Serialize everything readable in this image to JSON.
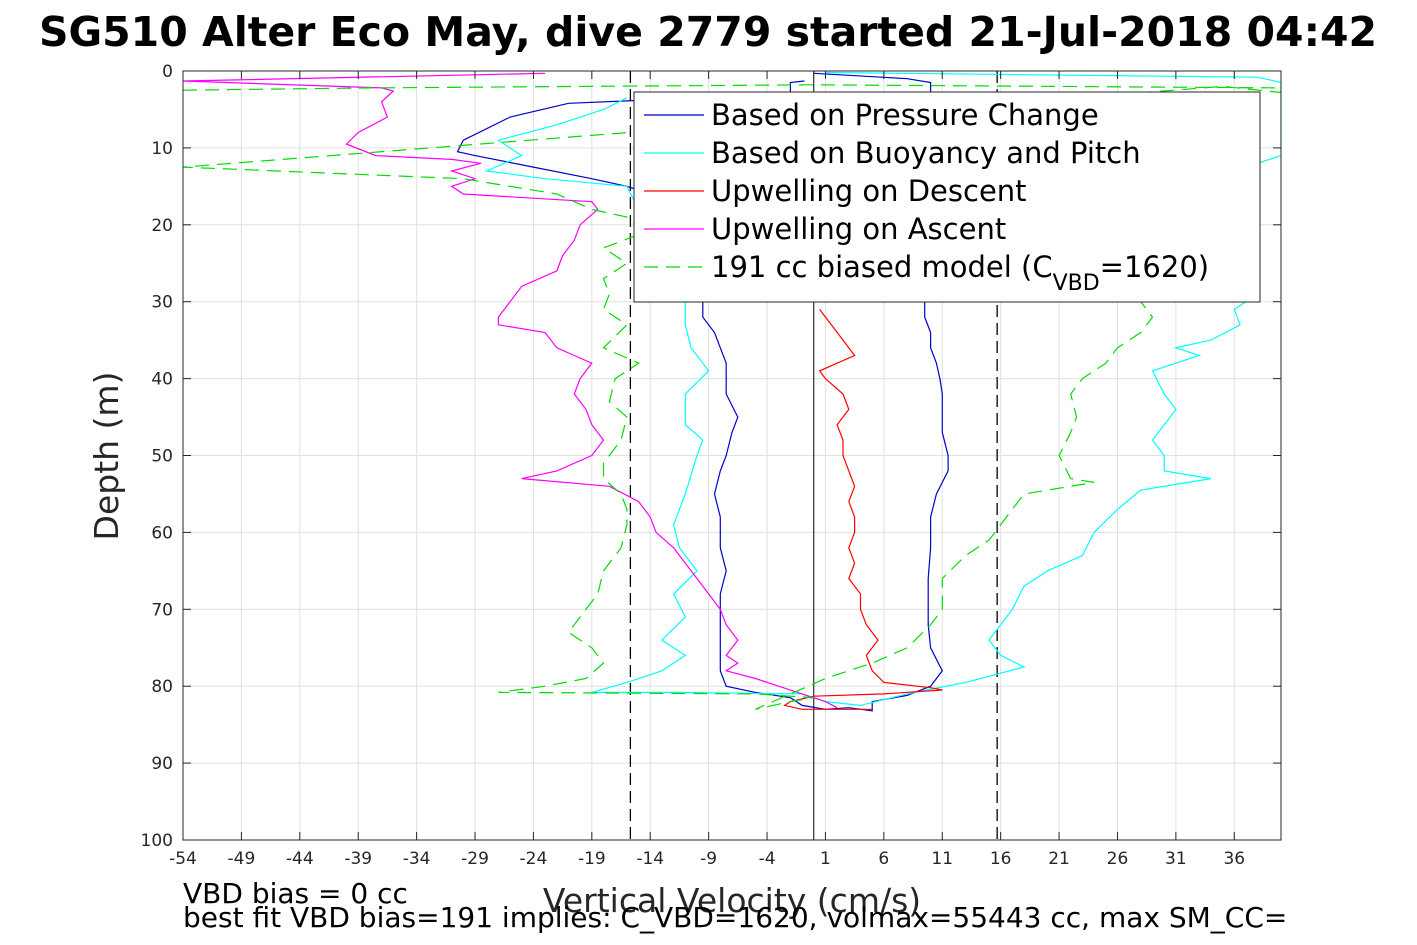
{
  "chart_data": {
    "type": "line",
    "title": "SG510 Alter Eco May, dive 2779 started 21-Jul-2018 04:42",
    "xlabel": "Vertical Velocity (cm/s)",
    "ylabel": "Depth (m)",
    "xlim": [
      -54,
      40
    ],
    "ylim": [
      0,
      100
    ],
    "y_reversed": true,
    "grid": true,
    "legend_position": "top-right",
    "x_ticks": [
      -54,
      -49,
      -44,
      -39,
      -34,
      -29,
      -24,
      -19,
      -14,
      -9,
      -4,
      1,
      6,
      11,
      16,
      21,
      26,
      31,
      36
    ],
    "y_ticks": [
      0,
      10,
      20,
      30,
      40,
      50,
      60,
      70,
      80,
      90,
      100
    ],
    "reference_lines": {
      "zero_velocity": 0,
      "dashed_limits": [
        -15.7,
        15.7
      ]
    },
    "series": [
      {
        "name": "Based on Pressure Change",
        "color": "#0000cc",
        "style": "solid",
        "points": [
          [
            -0.8,
            1.3
          ],
          [
            -2,
            1.5
          ],
          [
            -2,
            3
          ],
          [
            -21,
            4.2
          ],
          [
            -26,
            6
          ],
          [
            -30,
            9
          ],
          [
            -30.5,
            10.5
          ],
          [
            -29,
            11
          ],
          [
            -24,
            12.5
          ],
          [
            -19,
            14
          ],
          [
            -16,
            15
          ],
          [
            -14,
            16
          ],
          [
            -9.5,
            30
          ],
          [
            -9.5,
            32
          ],
          [
            -8.5,
            34
          ],
          [
            -8,
            36
          ],
          [
            -7.5,
            38
          ],
          [
            -7.5,
            40
          ],
          [
            -7.5,
            42
          ],
          [
            -6.5,
            45
          ],
          [
            -7,
            47
          ],
          [
            -7.5,
            50
          ],
          [
            -8,
            52
          ],
          [
            -8.5,
            55
          ],
          [
            -8,
            58
          ],
          [
            -8,
            62
          ],
          [
            -7.5,
            65
          ],
          [
            -8,
            68
          ],
          [
            -8,
            70
          ],
          [
            -8,
            73
          ],
          [
            -8,
            75
          ],
          [
            -8,
            78
          ],
          [
            -7.5,
            80
          ],
          [
            -5,
            80.8
          ],
          [
            -2,
            81.5
          ],
          [
            -1,
            82.5
          ],
          [
            1,
            83
          ],
          [
            3,
            82.8
          ],
          [
            5,
            83.2
          ],
          [
            5,
            82
          ],
          [
            8,
            81.2
          ],
          [
            10,
            80
          ],
          [
            11,
            78
          ],
          [
            10,
            75
          ],
          [
            9.8,
            72
          ],
          [
            9.8,
            70
          ],
          [
            9.8,
            66
          ],
          [
            10,
            62
          ],
          [
            10,
            58
          ],
          [
            10.5,
            55
          ],
          [
            11.5,
            52
          ],
          [
            11.5,
            50
          ],
          [
            11,
            47
          ],
          [
            11,
            45
          ],
          [
            11,
            42
          ],
          [
            10.8,
            40
          ],
          [
            10.5,
            38
          ],
          [
            10,
            36
          ],
          [
            10,
            34
          ],
          [
            9.5,
            32
          ],
          [
            9.5,
            30
          ],
          [
            9.5,
            15
          ],
          [
            11.5,
            12
          ],
          [
            11,
            8
          ],
          [
            10,
            5
          ],
          [
            10,
            1.5
          ],
          [
            8,
            1
          ],
          [
            0,
            0.3
          ]
        ]
      },
      {
        "name": "Based on Buoyancy and Pitch",
        "color": "#00ffff",
        "style": "solid",
        "points": [
          [
            -16,
            3.5
          ],
          [
            -18,
            5
          ],
          [
            -22,
            7
          ],
          [
            -27,
            9
          ],
          [
            -25,
            11
          ],
          [
            -28,
            13
          ],
          [
            -23,
            14
          ],
          [
            -16,
            15
          ],
          [
            -11,
            30
          ],
          [
            -11,
            33
          ],
          [
            -10.5,
            36
          ],
          [
            -9,
            39
          ],
          [
            -11,
            42
          ],
          [
            -11,
            46
          ],
          [
            -9.5,
            48
          ],
          [
            -10,
            50
          ],
          [
            -11,
            55
          ],
          [
            -12,
            59
          ],
          [
            -11.5,
            62
          ],
          [
            -10,
            65
          ],
          [
            -12,
            68
          ],
          [
            -11,
            71
          ],
          [
            -13,
            74
          ],
          [
            -11,
            76
          ],
          [
            -13,
            78
          ],
          [
            -16,
            79.5
          ],
          [
            -19,
            80.8
          ],
          [
            -12,
            80.8
          ],
          [
            -1,
            81
          ],
          [
            1,
            82
          ],
          [
            4,
            82.5
          ],
          [
            8,
            81
          ],
          [
            13,
            79.5
          ],
          [
            18,
            77.5
          ],
          [
            16,
            76
          ],
          [
            15,
            74
          ],
          [
            16,
            72
          ],
          [
            17,
            70
          ],
          [
            18,
            67
          ],
          [
            20,
            65
          ],
          [
            23,
            63
          ],
          [
            24,
            60
          ],
          [
            26,
            57
          ],
          [
            28,
            54.5
          ],
          [
            34,
            53
          ],
          [
            30,
            52
          ],
          [
            30,
            50
          ],
          [
            29,
            48
          ],
          [
            30,
            46
          ],
          [
            31,
            44
          ],
          [
            30,
            42
          ],
          [
            29,
            39
          ],
          [
            31,
            38
          ],
          [
            33,
            37
          ],
          [
            31,
            36
          ],
          [
            34,
            35
          ],
          [
            36.5,
            33
          ],
          [
            36,
            31
          ],
          [
            38,
            29
          ],
          [
            38,
            16
          ],
          [
            37,
            14
          ],
          [
            38,
            12
          ],
          [
            40,
            11
          ],
          [
            40,
            1.5
          ],
          [
            38,
            0.8
          ],
          [
            1,
            0.2
          ]
        ]
      },
      {
        "name": "Upwelling on Descent",
        "color": "#ff0000",
        "style": "solid",
        "points": [
          [
            0.5,
            31
          ],
          [
            1.5,
            33
          ],
          [
            2.5,
            35
          ],
          [
            3.5,
            37
          ],
          [
            2,
            38
          ],
          [
            0.5,
            39
          ],
          [
            1,
            40
          ],
          [
            2.5,
            42
          ],
          [
            3,
            44
          ],
          [
            2,
            46
          ],
          [
            2.5,
            48
          ],
          [
            2.5,
            50
          ],
          [
            3,
            52
          ],
          [
            3.5,
            54
          ],
          [
            3,
            56
          ],
          [
            3.5,
            58
          ],
          [
            3.5,
            60
          ],
          [
            3,
            62
          ],
          [
            3.5,
            64
          ],
          [
            3,
            66
          ],
          [
            4,
            68
          ],
          [
            4,
            70
          ],
          [
            4.5,
            72
          ],
          [
            5.5,
            74
          ],
          [
            4.5,
            76
          ],
          [
            5,
            78
          ],
          [
            6,
            79.5
          ],
          [
            10,
            80.2
          ],
          [
            11,
            80.5
          ],
          [
            6,
            81
          ],
          [
            0,
            81.3
          ],
          [
            -2,
            82
          ],
          [
            -2.5,
            82.5
          ],
          [
            -1,
            83
          ],
          [
            1,
            83
          ],
          [
            3,
            83
          ],
          [
            5,
            83
          ]
        ]
      },
      {
        "name": "Upwelling on Ascent",
        "color": "#ff00ff",
        "style": "solid",
        "points": [
          [
            -23,
            0.3
          ],
          [
            -54,
            1.3
          ],
          [
            -37,
            2.2
          ],
          [
            -36,
            2.6
          ],
          [
            -37,
            4
          ],
          [
            -36.5,
            6
          ],
          [
            -39,
            8
          ],
          [
            -40,
            9.5
          ],
          [
            -37.5,
            11
          ],
          [
            -31,
            11.5
          ],
          [
            -28.5,
            12
          ],
          [
            -31,
            13
          ],
          [
            -29,
            14
          ],
          [
            -31,
            15
          ],
          [
            -30,
            16
          ],
          [
            -19,
            17
          ],
          [
            -18.5,
            18
          ],
          [
            -20,
            20
          ],
          [
            -20.5,
            22
          ],
          [
            -21.5,
            24
          ],
          [
            -22,
            26
          ],
          [
            -25,
            28
          ],
          [
            -26,
            30
          ],
          [
            -27,
            32
          ],
          [
            -27,
            33
          ],
          [
            -23,
            34
          ],
          [
            -22,
            36
          ],
          [
            -20.5,
            37
          ],
          [
            -19,
            38
          ],
          [
            -20,
            40
          ],
          [
            -20.5,
            42
          ],
          [
            -19.5,
            44
          ],
          [
            -19,
            46
          ],
          [
            -18,
            48
          ],
          [
            -19,
            50
          ],
          [
            -22,
            52
          ],
          [
            -25,
            53
          ],
          [
            -17.5,
            54
          ],
          [
            -15,
            56
          ],
          [
            -14,
            58
          ],
          [
            -13.5,
            60
          ],
          [
            -12,
            62
          ],
          [
            -11,
            64
          ],
          [
            -10,
            66
          ],
          [
            -9,
            68
          ],
          [
            -8,
            70
          ],
          [
            -7.5,
            72
          ],
          [
            -6.5,
            74
          ],
          [
            -7.5,
            76
          ],
          [
            -6.5,
            77
          ],
          [
            -7.5,
            78
          ],
          [
            -5,
            79
          ],
          [
            -3,
            80
          ],
          [
            -1,
            81
          ],
          [
            1,
            82
          ],
          [
            2,
            82.8
          ]
        ]
      },
      {
        "name": "191 cc biased model (C_VBD=1620)",
        "color": "#00dd00",
        "style": "dashed",
        "points": [
          [
            -54,
            2.5
          ],
          [
            -38,
            2.2
          ],
          [
            0,
            1.8
          ],
          [
            40,
            2.2
          ],
          [
            40,
            2.8
          ],
          [
            35,
            2
          ],
          [
            -54,
            12.5
          ],
          [
            -30,
            14
          ],
          [
            -22,
            16
          ],
          [
            -19,
            18
          ],
          [
            -16,
            19
          ],
          [
            -14.5,
            21
          ],
          [
            -18,
            23
          ],
          [
            -16,
            25
          ],
          [
            -18,
            27
          ],
          [
            -17.5,
            29
          ],
          [
            -18,
            31
          ],
          [
            -16,
            33
          ],
          [
            -18,
            36
          ],
          [
            -15,
            38
          ],
          [
            -17,
            40
          ],
          [
            -17.5,
            43
          ],
          [
            -16,
            45
          ],
          [
            -16.5,
            48
          ],
          [
            -18,
            51
          ],
          [
            -18,
            53
          ],
          [
            -16.5,
            55
          ],
          [
            -16,
            57
          ],
          [
            -16,
            59
          ],
          [
            -16.5,
            62
          ],
          [
            -18,
            65
          ],
          [
            -18.5,
            68
          ],
          [
            -20,
            71
          ],
          [
            -21,
            73
          ],
          [
            -19,
            75
          ],
          [
            -18,
            77
          ],
          [
            -19.5,
            79
          ],
          [
            -23,
            80
          ],
          [
            -27,
            80.8
          ],
          [
            -5,
            81
          ],
          [
            0,
            81.5
          ],
          [
            -2,
            82
          ],
          [
            -5,
            83
          ],
          [
            1,
            79
          ],
          [
            5,
            77
          ],
          [
            8,
            75
          ],
          [
            10,
            72
          ],
          [
            11,
            70
          ],
          [
            11,
            66
          ],
          [
            13,
            63
          ],
          [
            15,
            61
          ],
          [
            16,
            59
          ],
          [
            17,
            57
          ],
          [
            18,
            55
          ],
          [
            24,
            53.5
          ],
          [
            22,
            53
          ],
          [
            21,
            50
          ],
          [
            22,
            47
          ],
          [
            22.5,
            45
          ],
          [
            22,
            42
          ],
          [
            23,
            40
          ],
          [
            25,
            38
          ],
          [
            26,
            36
          ],
          [
            28,
            34
          ],
          [
            29,
            32
          ],
          [
            28,
            30
          ]
        ]
      }
    ],
    "legend_label_parts": {
      "prefix": "191 cc biased model (C",
      "subscript": "VBD",
      "suffix": "=1620)"
    },
    "annotations": [
      "VBD bias = 0 cc",
      "best fit VBD bias=191 implies: C_VBD=1620, volmax=55443 cc, max SM_CC="
    ]
  }
}
